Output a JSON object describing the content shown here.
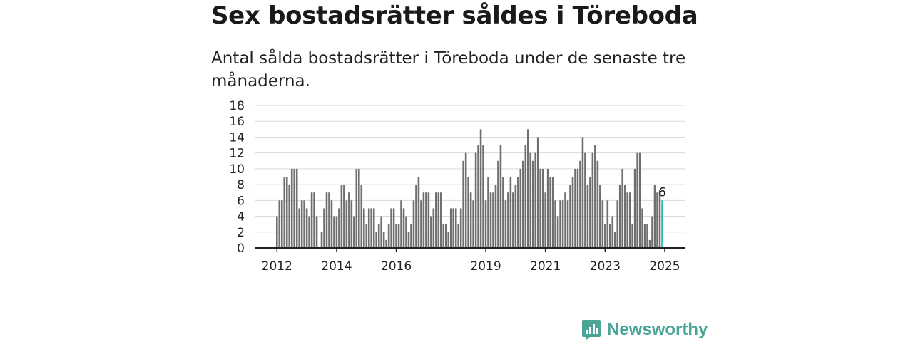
{
  "headline": "Sex bostadsrätter såldes i Töreboda",
  "subtitle": "Antal sålda bostadsrätter i Töreboda under de senaste tre månaderna.",
  "brand": {
    "name": "Newsworthy",
    "logo_icon": "newsworthy-logo-icon",
    "color": "#4aa596"
  },
  "colors": {
    "bar": "#6f6f72",
    "highlight": "#2bbcb0",
    "grid": "#d9d9d9",
    "axis": "#222222"
  },
  "chart_data": {
    "type": "bar",
    "title": "Sex bostadsrätter såldes i Töreboda",
    "subtitle": "Antal sålda bostadsrätter i Töreboda under de senaste tre månaderna.",
    "xlabel": "",
    "ylabel": "",
    "ylim": [
      0,
      18
    ],
    "yticks": [
      "0",
      "2",
      "4",
      "6",
      "8",
      "10",
      "12",
      "14",
      "16",
      "18"
    ],
    "xticks": [
      "2012",
      "2014",
      "2016",
      "2019",
      "2021",
      "2023",
      "2025"
    ],
    "grid": true,
    "values": [
      4,
      6,
      6,
      9,
      9,
      8,
      10,
      10,
      10,
      5,
      6,
      6,
      5,
      4,
      7,
      7,
      4,
      0,
      2,
      5,
      7,
      7,
      6,
      4,
      4,
      5,
      8,
      8,
      6,
      7,
      6,
      4,
      10,
      10,
      8,
      5,
      3,
      5,
      5,
      5,
      2,
      3,
      4,
      2,
      1,
      3,
      5,
      5,
      3,
      3,
      6,
      5,
      4,
      2,
      3,
      6,
      8,
      9,
      6,
      7,
      7,
      7,
      4,
      5,
      7,
      7,
      7,
      3,
      3,
      2,
      5,
      5,
      5,
      3,
      5,
      11,
      12,
      9,
      7,
      6,
      12,
      13,
      15,
      13,
      6,
      9,
      7,
      7,
      8,
      11,
      13,
      9,
      6,
      7,
      9,
      7,
      8,
      9,
      10,
      11,
      13,
      15,
      12,
      11,
      12,
      14,
      10,
      10,
      7,
      10,
      9,
      9,
      6,
      4,
      6,
      6,
      7,
      6,
      8,
      9,
      10,
      10,
      11,
      14,
      12,
      8,
      9,
      12,
      13,
      11,
      8,
      6,
      3,
      6,
      3,
      4,
      2,
      6,
      8,
      10,
      8,
      7,
      7,
      3,
      10,
      12,
      12,
      5,
      3,
      3,
      1,
      4,
      8,
      7,
      7,
      6
    ],
    "highlight": {
      "value": 6,
      "label": "6"
    }
  }
}
